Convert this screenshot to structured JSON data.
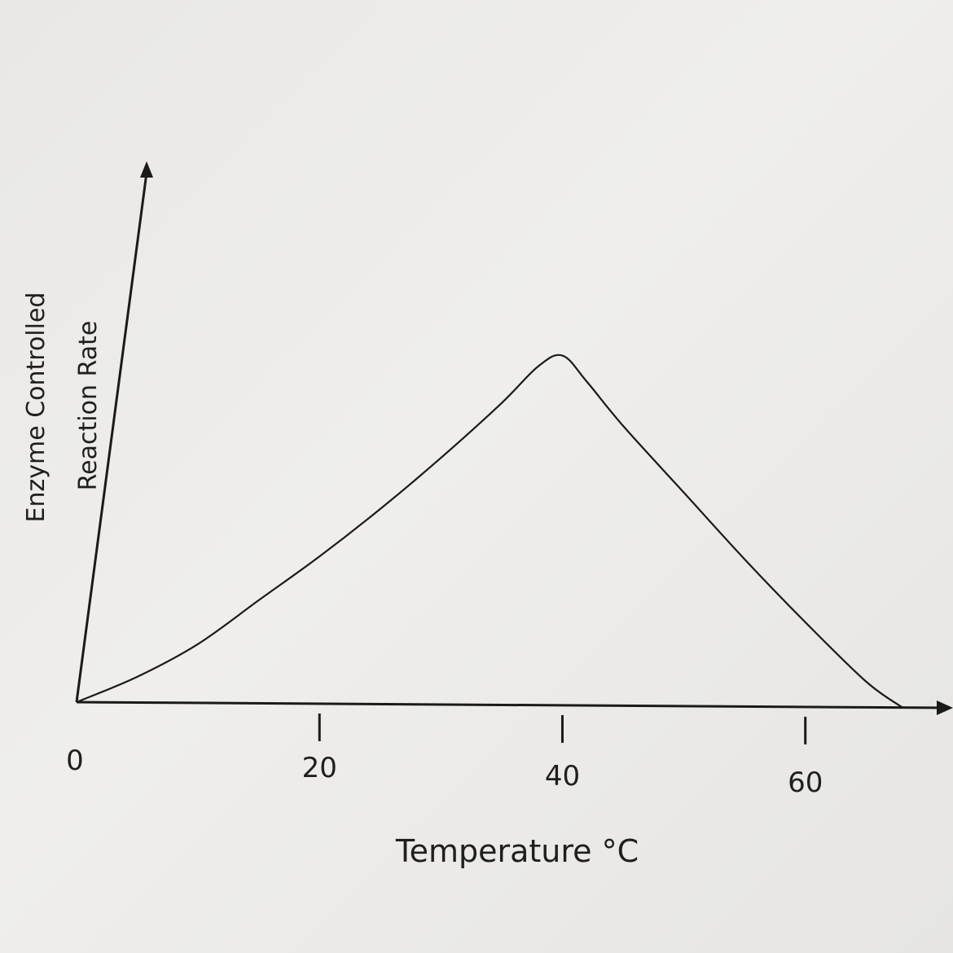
{
  "chart_data": {
    "type": "line",
    "xlabel": "Temperature °C",
    "ylabel_line1": "Enzyme Controlled",
    "ylabel_line2": "Reaction Rate",
    "origin_label": "0",
    "x_ticks": [
      20,
      40,
      60
    ],
    "xlim": [
      0,
      68
    ],
    "ylim": [
      0,
      100
    ],
    "series": [
      {
        "x": [
          0,
          5,
          10,
          15,
          20,
          25,
          30,
          35,
          38,
          40,
          42,
          45,
          50,
          55,
          60,
          65,
          68
        ],
        "y": [
          0,
          7,
          16,
          28,
          40,
          53,
          67,
          82,
          92,
          95,
          88,
          76,
          58,
          40,
          23,
          7,
          0
        ]
      }
    ]
  }
}
